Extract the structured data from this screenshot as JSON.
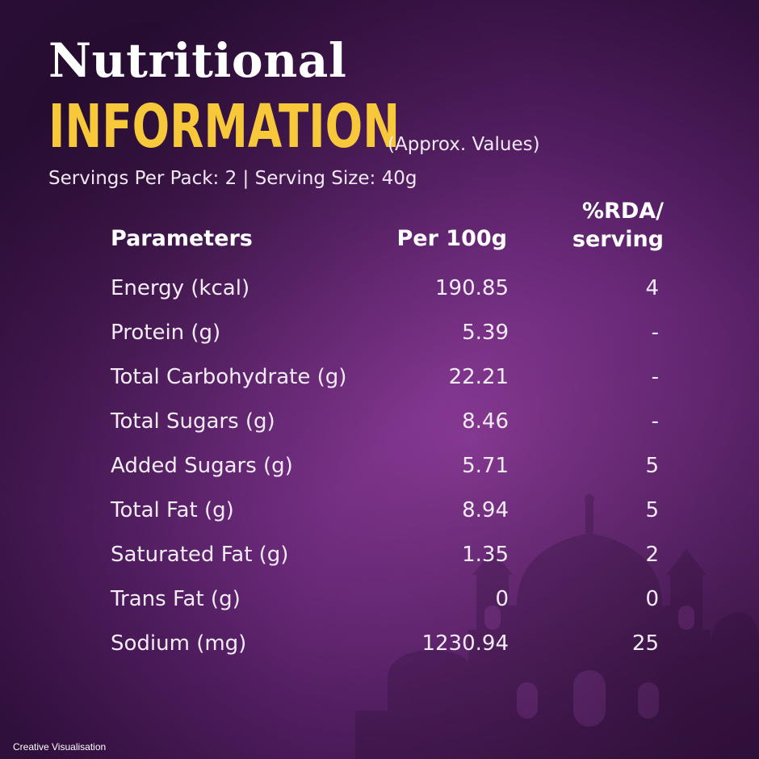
{
  "heading": {
    "line1": "Nutritional",
    "line2": "INFORMATION",
    "approx": "(Approx. Values)"
  },
  "servings": "Servings Per Pack: 2 | Serving Size: 40g",
  "columns": {
    "parameters": "Parameters",
    "per100g": "Per 100g",
    "rda_line1": "%RDA/",
    "rda_line2": "serving"
  },
  "rows": [
    {
      "name": "Energy (kcal)",
      "per100g": "190.85",
      "rda": "4"
    },
    {
      "name": "Protein (g)",
      "per100g": "5.39",
      "rda": "-"
    },
    {
      "name": "Total Carbohydrate (g)",
      "per100g": "22.21",
      "rda": "-"
    },
    {
      "name": "Total Sugars (g)",
      "per100g": "8.46",
      "rda": "-"
    },
    {
      "name": "Added Sugars (g)",
      "per100g": "5.71",
      "rda": "5"
    },
    {
      "name": "Total Fat (g)",
      "per100g": "8.94",
      "rda": "5"
    },
    {
      "name": "Saturated Fat (g)",
      "per100g": "1.35",
      "rda": "2"
    },
    {
      "name": "Trans Fat (g)",
      "per100g": "0",
      "rda": "0"
    },
    {
      "name": "Sodium (mg)",
      "per100g": "1230.94",
      "rda": "25"
    }
  ],
  "footnote": "Creative Visualisation",
  "colors": {
    "background": "#6b2a7a",
    "accent": "#f7c83a",
    "text": "#ffffff"
  }
}
